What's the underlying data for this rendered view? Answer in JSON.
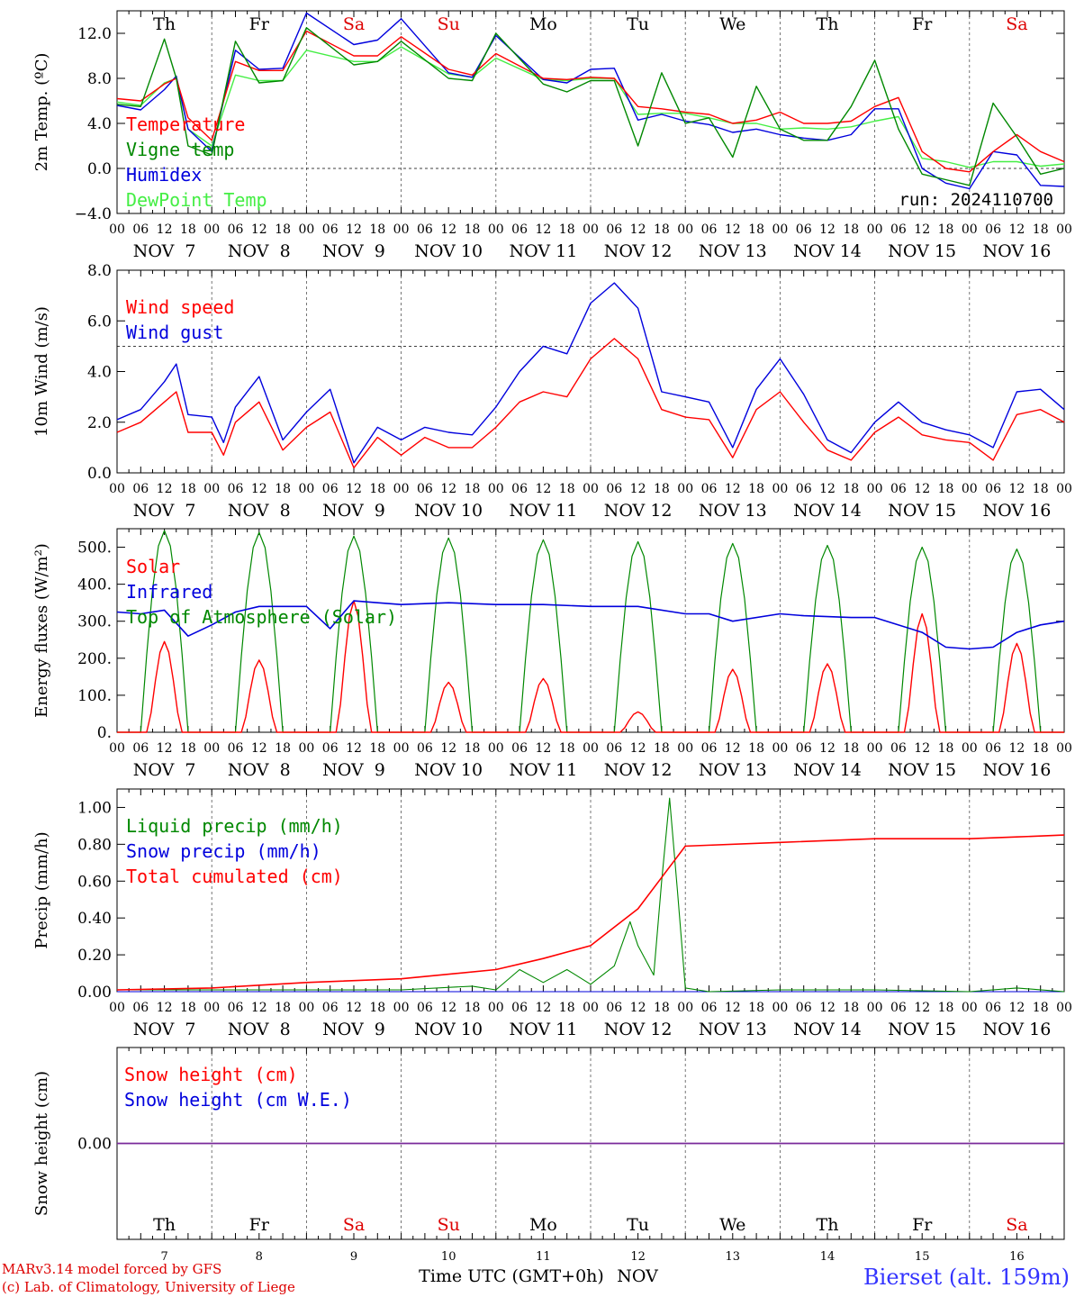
{
  "chart_data": [
    {
      "id": "temperature",
      "type": "line",
      "ylabel": "2m Temp. (ºC)",
      "ylim": [
        -4,
        14
      ],
      "yticks": [
        "−4.0",
        "0.0",
        "4.0",
        "8.0",
        "12.0"
      ],
      "ytick_values": [
        -4,
        0,
        4,
        8,
        12
      ],
      "reference_line": 0,
      "annotation": "run: 2024110700",
      "x_hours": [
        0,
        6,
        12,
        15,
        18,
        24,
        30,
        36,
        42,
        48,
        60,
        66,
        72,
        84,
        90,
        96,
        108,
        114,
        120,
        126,
        132,
        138,
        144,
        150,
        156,
        162,
        168,
        174,
        180,
        186,
        192,
        198,
        204,
        210,
        216,
        222,
        228,
        234,
        240
      ],
      "series": [
        {
          "name": "Temperature",
          "color": "#ff0000",
          "values": [
            6.2,
            6.0,
            7.5,
            8.0,
            4.5,
            2.5,
            9.5,
            8.7,
            8.7,
            12.2,
            10.0,
            10.0,
            11.7,
            8.8,
            8.3,
            10.2,
            8.0,
            7.9,
            8.1,
            8.0,
            5.5,
            5.3,
            5.0,
            4.8,
            4.0,
            4.3,
            5.0,
            4.0,
            4.0,
            4.2,
            5.5,
            6.3,
            1.5,
            0.0,
            -0.3,
            1.5,
            3.0,
            1.5,
            0.6
          ]
        },
        {
          "name": "Vigne temp",
          "color": "#008800",
          "values": [
            5.7,
            5.5,
            11.5,
            8.0,
            2.0,
            1.2,
            11.3,
            7.6,
            7.8,
            12.5,
            9.2,
            9.5,
            11.3,
            8.0,
            7.8,
            12.0,
            7.5,
            6.8,
            7.8,
            7.8,
            2.0,
            8.5,
            4.0,
            4.5,
            1.0,
            7.3,
            3.5,
            2.5,
            2.5,
            5.5,
            9.6,
            3.5,
            -0.5,
            -1.0,
            -1.5,
            5.8,
            2.8,
            -0.5,
            0.0
          ]
        },
        {
          "name": "Humidex",
          "color": "#0000dd",
          "values": [
            5.6,
            5.2,
            7.0,
            8.2,
            3.5,
            1.5,
            10.5,
            8.8,
            8.9,
            13.8,
            11.0,
            11.4,
            13.3,
            8.5,
            8.1,
            11.8,
            7.9,
            7.6,
            8.8,
            8.9,
            4.3,
            4.8,
            4.2,
            3.9,
            3.2,
            3.5,
            3.0,
            2.7,
            2.5,
            3.0,
            5.3,
            5.3,
            0.0,
            -1.3,
            -1.8,
            1.5,
            1.2,
            -1.5,
            -1.6
          ]
        },
        {
          "name": "DewPoint Temp",
          "color": "#44ee44",
          "values": [
            5.9,
            5.6,
            7.6,
            8.0,
            3.5,
            2.0,
            8.3,
            7.8,
            7.8,
            10.5,
            9.5,
            9.5,
            10.8,
            8.4,
            8.1,
            9.8,
            7.9,
            7.8,
            8.0,
            8.0,
            4.8,
            4.9,
            4.9,
            4.5,
            4.0,
            4.0,
            3.5,
            3.6,
            3.5,
            3.7,
            4.2,
            4.6,
            0.9,
            0.6,
            0.1,
            0.6,
            0.6,
            0.2,
            0.4
          ]
        }
      ]
    },
    {
      "id": "wind",
      "type": "line",
      "ylabel": "10m Wind (m/s)",
      "ylim": [
        0,
        8
      ],
      "yticks": [
        "0.0",
        "2.0",
        "4.0",
        "6.0",
        "8.0"
      ],
      "ytick_values": [
        0,
        2,
        4,
        6,
        8
      ],
      "reference_line": 5,
      "x_hours": [
        0,
        6,
        12,
        15,
        18,
        24,
        27,
        30,
        36,
        42,
        48,
        54,
        60,
        66,
        72,
        78,
        84,
        90,
        96,
        102,
        108,
        114,
        120,
        126,
        132,
        138,
        144,
        150,
        156,
        162,
        168,
        174,
        180,
        186,
        192,
        198,
        204,
        210,
        216,
        222,
        228,
        234,
        240
      ],
      "series": [
        {
          "name": "Wind speed",
          "color": "#ff0000",
          "values": [
            1.6,
            2.0,
            2.8,
            3.2,
            1.6,
            1.6,
            0.7,
            2.0,
            2.8,
            0.9,
            1.8,
            2.4,
            0.2,
            1.4,
            0.7,
            1.4,
            1.0,
            1.0,
            1.8,
            2.8,
            3.2,
            3.0,
            4.5,
            5.3,
            4.5,
            2.5,
            2.2,
            2.1,
            0.6,
            2.5,
            3.2,
            2.0,
            0.9,
            0.5,
            1.6,
            2.2,
            1.5,
            1.3,
            1.2,
            0.5,
            2.3,
            2.5,
            2.0
          ]
        },
        {
          "name": "Wind gust",
          "color": "#0000dd",
          "values": [
            2.1,
            2.5,
            3.6,
            4.3,
            2.3,
            2.2,
            1.2,
            2.6,
            3.8,
            1.3,
            2.4,
            3.3,
            0.4,
            1.8,
            1.3,
            1.8,
            1.6,
            1.5,
            2.6,
            4.0,
            5.0,
            4.7,
            6.7,
            7.5,
            6.5,
            3.2,
            3.0,
            2.8,
            1.0,
            3.3,
            4.5,
            3.1,
            1.3,
            0.8,
            2.0,
            2.8,
            2.0,
            1.7,
            1.5,
            1.0,
            3.2,
            3.3,
            2.5
          ]
        }
      ]
    },
    {
      "id": "energy",
      "type": "line",
      "ylabel": "Energy fluxes (W/m²)",
      "ylim": [
        0,
        550
      ],
      "yticks": [
        "0.",
        "100.",
        "200.",
        "300.",
        "400.",
        "500."
      ],
      "ytick_values": [
        0,
        100,
        200,
        300,
        400,
        500
      ],
      "legend": [
        "Solar",
        "Infrared",
        "Top of Atmosphere (Solar)"
      ],
      "legend_colors": [
        "#ff0000",
        "#0000dd",
        "#008800"
      ],
      "solar_peaks": [
        245,
        195,
        355,
        135,
        145,
        55,
        170,
        185,
        320,
        240
      ],
      "toa_peaks": [
        545,
        540,
        530,
        525,
        520,
        515,
        510,
        505,
        500,
        495
      ],
      "infrared": {
        "x_hours": [
          0,
          6,
          12,
          18,
          24,
          30,
          36,
          48,
          54,
          60,
          66,
          72,
          84,
          96,
          108,
          120,
          132,
          144,
          150,
          156,
          168,
          174,
          186,
          192,
          204,
          210,
          216,
          222,
          228,
          234,
          240
        ],
        "values": [
          325,
          320,
          330,
          260,
          290,
          325,
          340,
          340,
          280,
          355,
          350,
          345,
          350,
          345,
          345,
          340,
          340,
          320,
          320,
          300,
          320,
          315,
          310,
          310,
          270,
          230,
          225,
          230,
          270,
          290,
          300
        ]
      }
    },
    {
      "id": "precip",
      "type": "line",
      "ylabel": "Precip (mm/h)",
      "ylim": [
        0,
        1.1
      ],
      "yticks": [
        "0.00",
        "0.20",
        "0.40",
        "0.60",
        "0.80",
        "1.00"
      ],
      "ytick_values": [
        0,
        0.2,
        0.4,
        0.6,
        0.8,
        1.0
      ],
      "series": [
        {
          "name": "Liquid precip (mm/h)",
          "color": "#008800",
          "x_hours": [
            0,
            24,
            48,
            72,
            90,
            96,
            102,
            108,
            114,
            120,
            126,
            130,
            132,
            136,
            138,
            140,
            142,
            144,
            150,
            168,
            192,
            216,
            228,
            240
          ],
          "values": [
            0.01,
            0.01,
            0.01,
            0.01,
            0.03,
            0.01,
            0.12,
            0.05,
            0.12,
            0.04,
            0.14,
            0.38,
            0.25,
            0.09,
            0.6,
            1.05,
            0.55,
            0.02,
            0.0,
            0.01,
            0.01,
            0.0,
            0.02,
            0.0
          ]
        },
        {
          "name": "Snow precip (mm/h)",
          "color": "#0000dd",
          "x_hours": [
            0,
            240
          ],
          "values": [
            0,
            0
          ]
        },
        {
          "name": "Total cumulated (cm)",
          "color": "#ff0000",
          "x_hours": [
            0,
            24,
            48,
            72,
            96,
            108,
            120,
            126,
            132,
            138,
            144,
            168,
            192,
            216,
            228,
            240
          ],
          "values": [
            0.01,
            0.02,
            0.05,
            0.07,
            0.12,
            0.18,
            0.25,
            0.35,
            0.45,
            0.62,
            0.79,
            0.81,
            0.83,
            0.83,
            0.84,
            0.85
          ]
        }
      ]
    },
    {
      "id": "snow",
      "type": "line",
      "ylabel": "Snow height (cm)",
      "ytick_values": [
        0
      ],
      "yticks": [
        "0.00"
      ],
      "series": [
        {
          "name": "Snow height (cm)",
          "color": "#ff0000",
          "values": [
            0,
            0
          ]
        },
        {
          "name": "Snow height (cm W.E.)",
          "color": "#0000dd",
          "values": [
            0,
            0
          ]
        }
      ]
    }
  ],
  "time_axis": {
    "hour_labels": [
      "00",
      "06",
      "12",
      "18"
    ],
    "final_hour_label": "00",
    "date_labels": [
      "NOV  7",
      "NOV  8",
      "NOV  9",
      "NOV 10",
      "NOV 11",
      "NOV 12",
      "NOV 13",
      "NOV 14",
      "NOV 15",
      "NOV 16"
    ],
    "weekdays": [
      "Th",
      "Fr",
      "Sa",
      "Su",
      "Mo",
      "Tu",
      "We",
      "Th",
      "Fr",
      "Sa"
    ],
    "weekday_colors": [
      "#000000",
      "#000000",
      "#dd0000",
      "#dd0000",
      "#000000",
      "#000000",
      "#000000",
      "#000000",
      "#000000",
      "#dd0000"
    ],
    "day_numbers": [
      "7",
      "8",
      "9",
      "10",
      "11",
      "12",
      "13",
      "14",
      "15",
      "16"
    ],
    "xlabel": "Time UTC (GMT+0h)",
    "month": "NOV"
  },
  "footer": {
    "credit_line1": "MARv3.14 model forced by GFS",
    "credit_line2": "(c) Lab. of Climatology, University of Liege",
    "station": "Bierset (alt. 159m)"
  }
}
